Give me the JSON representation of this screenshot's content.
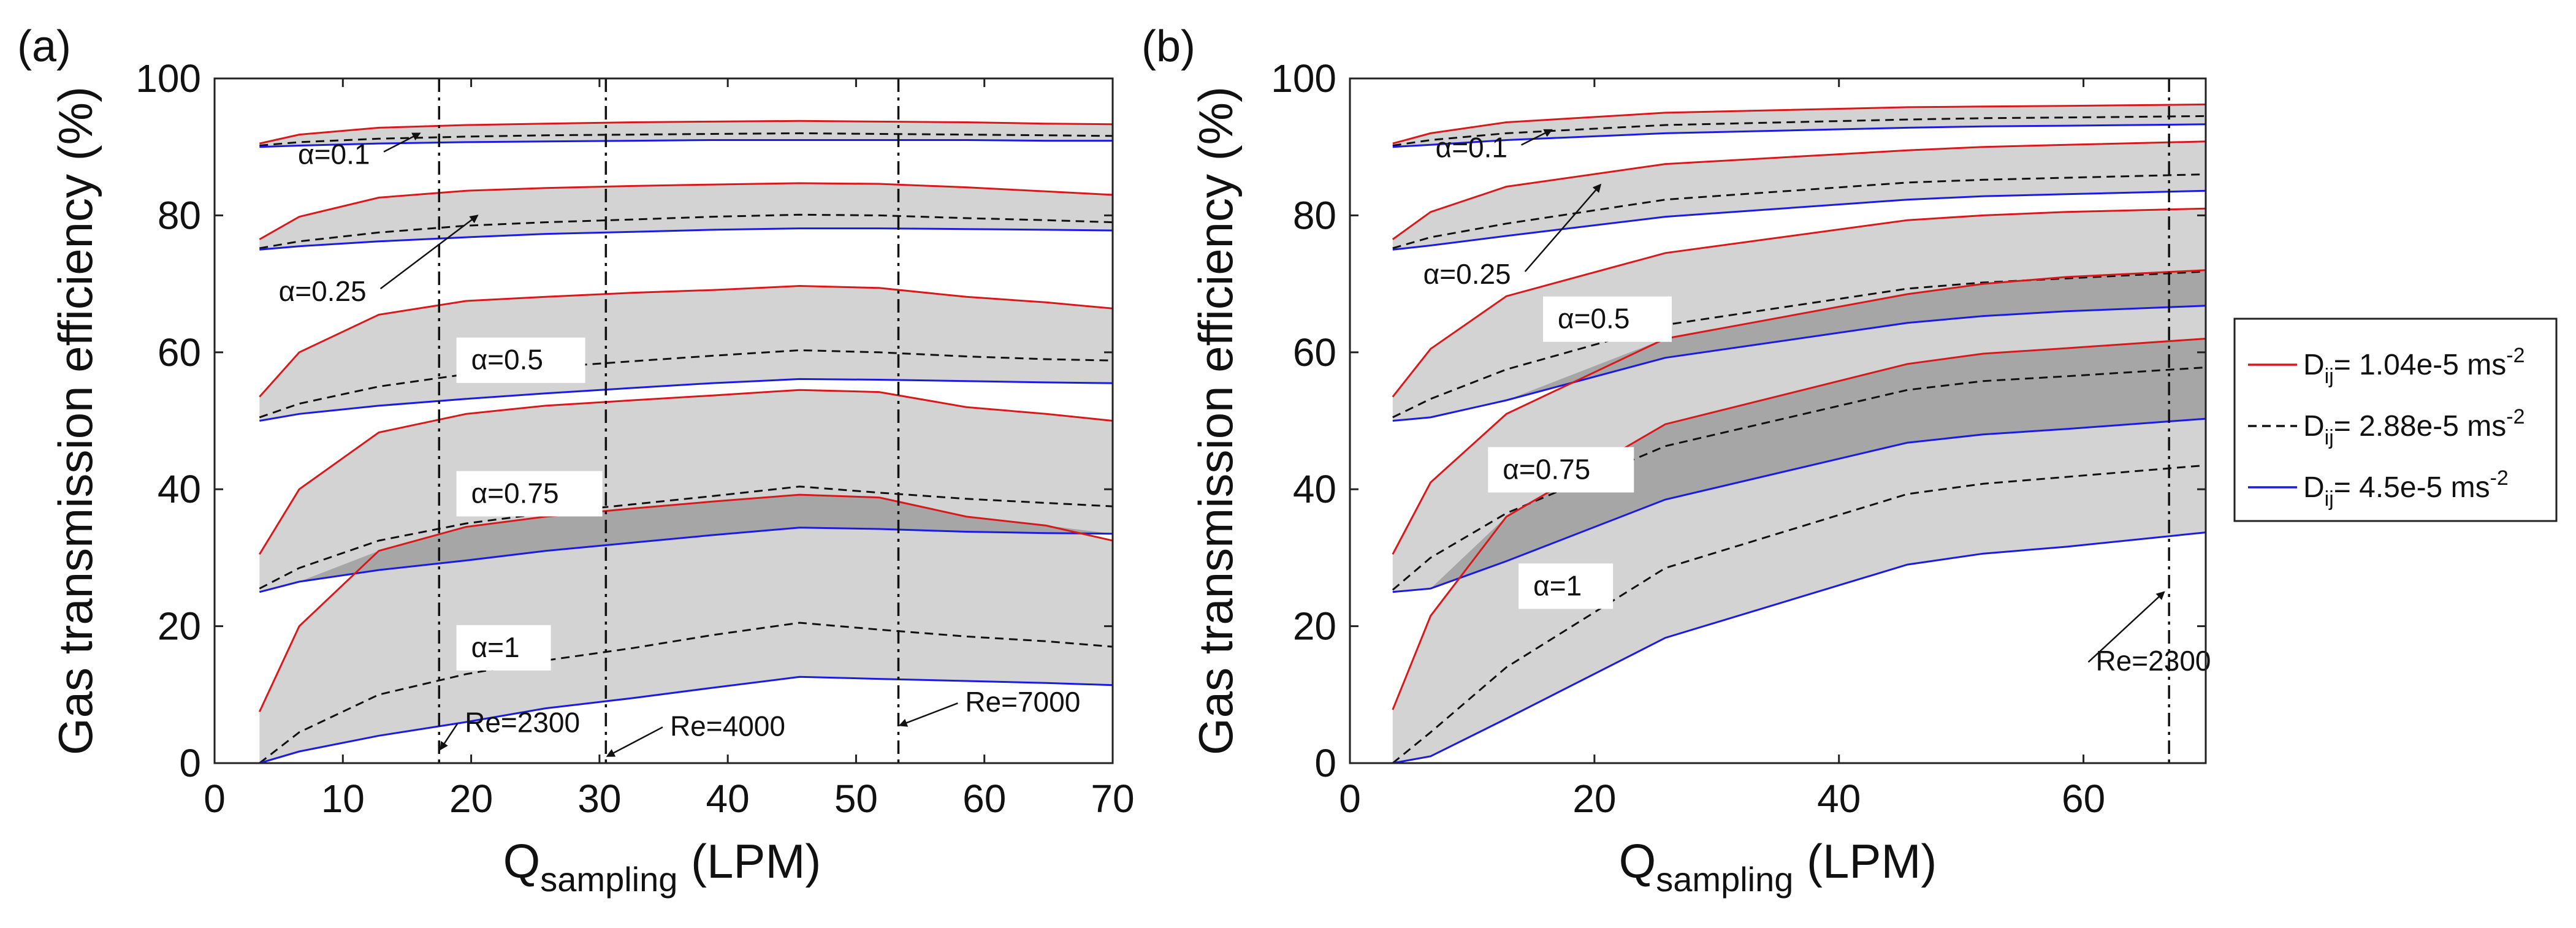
{
  "chart_data": [
    {
      "type": "area",
      "panel_label": "(a)",
      "xlabel": "Q",
      "xlabel_sub": "sampling",
      "xlabel_unit": "(LPM)",
      "ylabel": "Gas transmission efficiency (%)",
      "xlim": [
        0,
        70
      ],
      "ylim": [
        0,
        100
      ],
      "xticks": [
        0,
        10,
        20,
        30,
        40,
        50,
        60,
        70
      ],
      "yticks": [
        0,
        20,
        40,
        60,
        80,
        100
      ],
      "x": [
        3.5,
        6.6,
        12.8,
        19.6,
        25.8,
        32.6,
        38.8,
        45.6,
        51.8,
        58.6,
        64.8,
        70
      ],
      "groups": [
        {
          "alpha": "α=0.1",
          "red": [
            90.5,
            91.8,
            92.8,
            93.2,
            93.4,
            93.6,
            93.7,
            93.8,
            93.7,
            93.6,
            93.4,
            93.3
          ],
          "black": [
            90.2,
            90.7,
            91.2,
            91.5,
            91.7,
            91.8,
            91.9,
            92.0,
            91.9,
            91.8,
            91.7,
            91.6
          ],
          "blue": [
            90.0,
            90.2,
            90.5,
            90.7,
            90.8,
            90.9,
            91.0,
            91.0,
            91.0,
            91.0,
            90.9,
            90.9
          ]
        },
        {
          "alpha": "α=0.25",
          "red": [
            76.5,
            79.8,
            82.6,
            83.6,
            84.0,
            84.3,
            84.5,
            84.7,
            84.6,
            84.1,
            83.5,
            83.0
          ],
          "black": [
            75.2,
            76.2,
            77.5,
            78.5,
            79.0,
            79.4,
            79.8,
            80.1,
            80.0,
            79.6,
            79.3,
            79.0
          ],
          "blue": [
            75.0,
            75.5,
            76.2,
            76.8,
            77.3,
            77.6,
            77.9,
            78.1,
            78.1,
            78.0,
            77.9,
            77.8
          ]
        },
        {
          "alpha": "α=0.5",
          "red": [
            53.5,
            60.0,
            65.5,
            67.5,
            68.1,
            68.7,
            69.1,
            69.7,
            69.4,
            68.1,
            67.3,
            66.4
          ],
          "black": [
            50.5,
            52.5,
            55.0,
            56.8,
            57.8,
            58.7,
            59.5,
            60.3,
            60.0,
            59.4,
            59.0,
            58.8
          ],
          "blue": [
            50.0,
            51.0,
            52.2,
            53.2,
            54.0,
            54.8,
            55.5,
            56.1,
            56.0,
            55.8,
            55.6,
            55.5
          ]
        },
        {
          "alpha": "α=0.75",
          "red": [
            30.5,
            40.0,
            48.3,
            51.0,
            52.2,
            53.0,
            53.7,
            54.5,
            54.2,
            52.0,
            51.0,
            50.0
          ],
          "black": [
            25.5,
            28.5,
            32.5,
            35.0,
            36.5,
            37.8,
            39.0,
            40.4,
            39.5,
            38.6,
            38.0,
            37.5
          ],
          "blue": [
            25.0,
            26.5,
            28.2,
            29.6,
            31.0,
            32.2,
            33.3,
            34.4,
            34.2,
            33.8,
            33.6,
            33.5
          ]
        },
        {
          "alpha": "α=1",
          "red": [
            7.5,
            20.0,
            31.0,
            34.5,
            36.0,
            37.2,
            38.2,
            39.2,
            38.8,
            36.0,
            34.7,
            32.5
          ],
          "black": [
            0.0,
            4.5,
            10.0,
            13.0,
            15.0,
            16.8,
            18.7,
            20.5,
            19.5,
            18.5,
            17.8,
            17.0
          ],
          "blue": [
            0.0,
            1.7,
            4.0,
            6.0,
            8.0,
            9.5,
            11.0,
            12.6,
            12.3,
            12.0,
            11.7,
            11.4
          ]
        }
      ],
      "reference_lines": [
        {
          "x": 17.5,
          "label": "Re=2300",
          "label_x": 19.5,
          "label_y": 4.5,
          "arrow_to_x": 17.6,
          "arrow_to_y": 2.0
        },
        {
          "x": 30.5,
          "label": "Re=4000",
          "label_x": 35.5,
          "label_y": 4.0,
          "arrow_to_x": 30.6,
          "arrow_to_y": 1.0
        },
        {
          "x": 53.3,
          "label": "Re=7000",
          "label_x": 58.5,
          "label_y": 7.5,
          "arrow_to_x": 53.4,
          "arrow_to_y": 5.5
        }
      ],
      "annotations": [
        {
          "text": "α=0.1",
          "x": 6.5,
          "y": 87.5,
          "box": false,
          "arrow_to_x": 16.0,
          "arrow_to_y": 92.0
        },
        {
          "text": "α=0.25",
          "x": 5.0,
          "y": 67.5,
          "box": false,
          "arrow_to_x": 20.5,
          "arrow_to_y": 80.0
        },
        {
          "text": "α=0.5",
          "x": 20.0,
          "y": 57.5,
          "box": true
        },
        {
          "text": "α=0.75",
          "x": 20.0,
          "y": 38.0,
          "box": true
        },
        {
          "text": "α=1",
          "x": 20.0,
          "y": 15.5,
          "box": true
        }
      ]
    },
    {
      "type": "area",
      "panel_label": "(b)",
      "xlabel": "Q",
      "xlabel_sub": "sampling",
      "xlabel_unit": "(LPM)",
      "ylabel": "Gas transmission efficiency (%)",
      "xlim": [
        0,
        70
      ],
      "ylim": [
        0,
        100
      ],
      "xticks": [
        0,
        20,
        40,
        60
      ],
      "yticks": [
        0,
        20,
        40,
        60,
        80,
        100
      ],
      "x": [
        3.5,
        6.6,
        12.8,
        25.8,
        45.6,
        51.8,
        58.6,
        70
      ],
      "groups": [
        {
          "alpha": "α=0.1",
          "red": [
            90.5,
            92.0,
            93.6,
            95.0,
            95.8,
            95.9,
            96.0,
            96.2
          ],
          "black": [
            90.2,
            91.0,
            92.0,
            93.2,
            94.0,
            94.2,
            94.3,
            94.5
          ],
          "blue": [
            90.0,
            90.3,
            91.0,
            92.0,
            92.8,
            93.0,
            93.1,
            93.3
          ]
        },
        {
          "alpha": "α=0.25",
          "red": [
            76.5,
            80.5,
            84.2,
            87.5,
            89.5,
            90.0,
            90.3,
            90.8
          ],
          "black": [
            75.2,
            76.8,
            78.8,
            82.3,
            84.8,
            85.2,
            85.5,
            86.0
          ],
          "blue": [
            75.0,
            75.6,
            77.0,
            79.8,
            82.3,
            82.8,
            83.1,
            83.6
          ]
        },
        {
          "alpha": "α=0.5",
          "red": [
            53.5,
            60.5,
            68.2,
            74.5,
            79.3,
            80.0,
            80.5,
            81.0
          ],
          "black": [
            50.5,
            53.2,
            57.5,
            64.0,
            69.3,
            70.2,
            70.8,
            71.8
          ],
          "blue": [
            50.0,
            50.5,
            53.0,
            59.2,
            64.3,
            65.3,
            66.0,
            66.8
          ]
        },
        {
          "alpha": "α=0.75",
          "red": [
            30.5,
            41.0,
            51.0,
            62.0,
            68.5,
            70.0,
            71.0,
            72.0
          ],
          "black": [
            25.3,
            30.0,
            36.5,
            46.3,
            54.5,
            55.8,
            56.5,
            57.8
          ],
          "blue": [
            25.0,
            25.5,
            29.5,
            38.5,
            46.8,
            48.0,
            48.8,
            50.3
          ]
        },
        {
          "alpha": "α=1",
          "red": [
            7.8,
            21.5,
            36.0,
            49.5,
            58.3,
            59.8,
            60.6,
            62.0
          ],
          "black": [
            0.0,
            4.5,
            14.0,
            28.5,
            39.3,
            40.8,
            41.8,
            43.5
          ],
          "blue": [
            0.0,
            1.0,
            6.5,
            18.3,
            29.0,
            30.6,
            31.6,
            33.7
          ]
        }
      ],
      "reference_lines": [
        {
          "x": 67.0,
          "label": "Re=2300",
          "label_x": 61.0,
          "label_y": 13.5,
          "arrow_to_x": 66.6,
          "arrow_to_y": 25.0
        }
      ],
      "annotations": [
        {
          "text": "α=0.1",
          "x": 7.0,
          "y": 88.5,
          "box": false,
          "arrow_to_x": 16.5,
          "arrow_to_y": 92.5
        },
        {
          "text": "α=0.25",
          "x": 6.0,
          "y": 70.0,
          "box": false,
          "arrow_to_x": 20.5,
          "arrow_to_y": 84.5
        },
        {
          "text": "α=0.5",
          "x": 17.0,
          "y": 63.5,
          "box": true
        },
        {
          "text": "α=0.75",
          "x": 12.5,
          "y": 41.5,
          "box": true
        },
        {
          "text": "α=1",
          "x": 15.0,
          "y": 24.5,
          "box": true
        }
      ]
    }
  ],
  "legend": {
    "position": "right",
    "items": [
      {
        "prefix": "D",
        "sub": "ij",
        "text": "= 1.04e-5 ms",
        "sup": "-2",
        "color": "#d7191c",
        "dash": "solid"
      },
      {
        "prefix": "D",
        "sub": "ij",
        "text": "= 2.88e-5 ms",
        "sup": "-2",
        "color": "#111111",
        "dash": "dashed"
      },
      {
        "prefix": "D",
        "sub": "ij",
        "text": "= 4.5e-5 ms",
        "sup": "-2",
        "color": "#1a1ae6",
        "dash": "solid"
      }
    ]
  },
  "colors": {
    "band_light": "#d3d3d3",
    "band_dark": "#a6a6a6",
    "red": "#d7191c",
    "black": "#111111",
    "blue": "#1a1ae6"
  }
}
